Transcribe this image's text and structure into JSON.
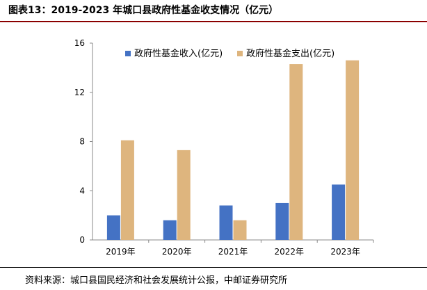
{
  "figure_title": "图表13：2019-2023 年城口县政府性基金收支情况（亿元）",
  "source_note": "资料来源：城口县国民经济和社会发展统计公报，中邮证券研究所",
  "chart_data": {
    "type": "bar",
    "categories": [
      "2019年",
      "2020年",
      "2021年",
      "2022年",
      "2023年"
    ],
    "series": [
      {
        "name": "政府性基金收入(亿元)",
        "color": "#4472c4",
        "values": [
          2.0,
          1.6,
          2.8,
          3.0,
          4.5
        ]
      },
      {
        "name": "政府性基金支出(亿元)",
        "color": "#deb57e",
        "values": [
          8.1,
          7.3,
          1.6,
          14.3,
          14.6
        ]
      }
    ],
    "yticks": [
      0,
      4,
      8,
      12,
      16
    ],
    "ylim": [
      0,
      16
    ],
    "legend_position": "top",
    "grid": false
  }
}
